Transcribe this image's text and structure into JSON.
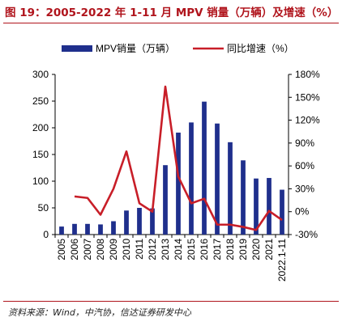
{
  "title": "图 19：2005-2022 年 1-11 月 MPV 销量（万辆）及增速（%）",
  "source": "资料来源：Wind，中汽协，信达证券研发中心",
  "colors": {
    "bar": "#1f2f8c",
    "line": "#c81e28",
    "title": "#b0141c"
  },
  "chart_data": {
    "type": "bar",
    "categories": [
      "2005",
      "2006",
      "2007",
      "2008",
      "2009",
      "2010",
      "2011",
      "2012",
      "2013",
      "2014",
      "2015",
      "2016",
      "2017",
      "2018",
      "2019",
      "2020",
      "2021",
      "2022.1-11"
    ],
    "series": [
      {
        "name": "MPV销量（万辆）",
        "type": "bar",
        "axis": "left",
        "values": [
          15,
          20,
          20,
          19,
          25,
          45,
          50,
          49,
          130,
          191,
          210,
          249,
          208,
          173,
          139,
          105,
          106,
          84
        ]
      },
      {
        "name": "同比增速（%）",
        "type": "line",
        "axis": "right",
        "values": [
          null,
          20,
          18,
          -4,
          30,
          79,
          11,
          0,
          164,
          46,
          11,
          17,
          -17,
          -17,
          -20,
          -24,
          1,
          -11
        ]
      }
    ],
    "y_left": {
      "lim": [
        0,
        300
      ],
      "ticks": [
        "0",
        "50",
        "100",
        "150",
        "200",
        "250",
        "300"
      ]
    },
    "y_right": {
      "lim": [
        -30,
        180
      ],
      "ticks": [
        "-30%",
        "0%",
        "30%",
        "60%",
        "90%",
        "120%",
        "150%",
        "180%"
      ]
    },
    "legend_position": "top",
    "grid": false
  }
}
